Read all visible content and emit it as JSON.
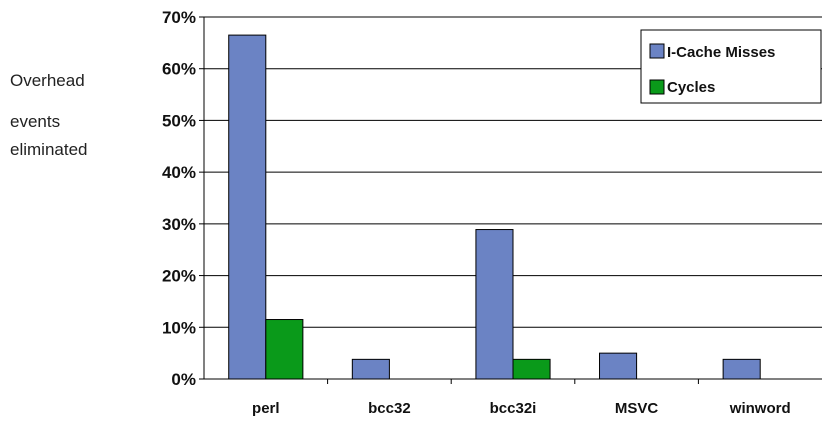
{
  "chart_data": {
    "type": "bar",
    "ylabel": [
      "Overhead",
      "events",
      "eliminated"
    ],
    "categories": [
      "perl",
      "bcc32",
      "bcc32i",
      "MSVC",
      "winword"
    ],
    "series": [
      {
        "name": "I-Cache Misses",
        "color": "#6b83c4",
        "values": [
          66.5,
          3.8,
          28.9,
          5.0,
          3.8
        ]
      },
      {
        "name": "Cycles",
        "color": "#0a9a1a",
        "values": [
          11.5,
          0,
          3.8,
          0,
          0
        ]
      }
    ],
    "ylim": [
      0,
      70
    ],
    "yticks": [
      0,
      10,
      20,
      30,
      40,
      50,
      60,
      70
    ],
    "ytick_labels": [
      "0%",
      "10%",
      "20%",
      "30%",
      "40%",
      "50%",
      "60%",
      "70%"
    ],
    "grid": true,
    "legend_position": "top-right"
  }
}
